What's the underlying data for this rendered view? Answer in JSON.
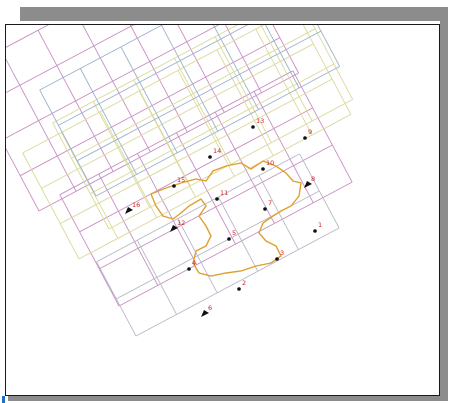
{
  "colors": {
    "grid_magenta": "#c78fc2",
    "grid_yellow": "#d9d99a",
    "grid_blue": "#9bb2cf",
    "grid_gray": "#b8b8c8",
    "boundary": "#e0a030",
    "label": "#cc2222",
    "point": "#111111",
    "shadow": "#8c8c8c",
    "accent": "#1f6fc7"
  },
  "stations": [
    {
      "id": "1",
      "label": "1"
    },
    {
      "id": "2",
      "label": "2"
    },
    {
      "id": "3",
      "label": "3"
    },
    {
      "id": "4",
      "label": "4"
    },
    {
      "id": "5",
      "label": "5"
    },
    {
      "id": "6",
      "label": "6"
    },
    {
      "id": "7",
      "label": "7"
    },
    {
      "id": "8",
      "label": "8"
    },
    {
      "id": "9",
      "label": "9"
    },
    {
      "id": "10",
      "label": "10"
    },
    {
      "id": "11",
      "label": "11"
    },
    {
      "id": "12",
      "label": "12"
    },
    {
      "id": "13",
      "label": "13"
    },
    {
      "id": "14",
      "label": "14"
    },
    {
      "id": "15",
      "label": "15"
    },
    {
      "id": "16",
      "label": "16"
    }
  ]
}
